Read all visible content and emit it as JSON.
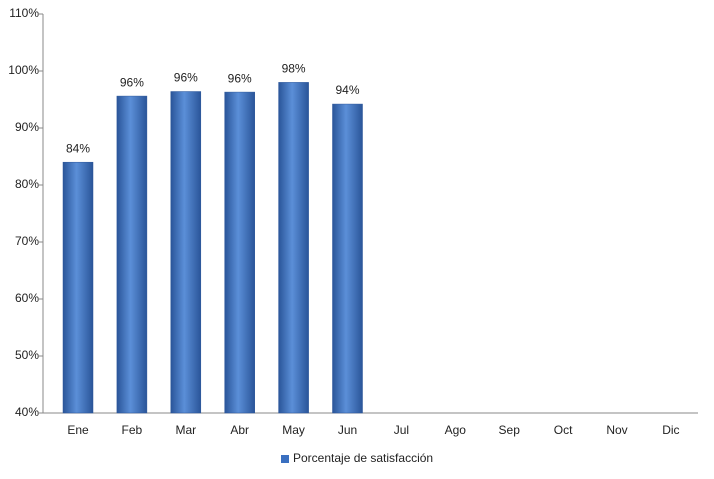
{
  "chart_data": {
    "type": "bar",
    "categories": [
      "Ene",
      "Feb",
      "Mar",
      "Abr",
      "May",
      "Jun",
      "Jul",
      "Ago",
      "Sep",
      "Oct",
      "Nov",
      "Dic"
    ],
    "series": [
      {
        "name": "Porcentaje de satisfacción",
        "color": "#3a6fc0",
        "values": [
          84,
          95.6,
          96.4,
          96.3,
          98,
          94.2,
          null,
          null,
          null,
          null,
          null,
          null
        ],
        "value_labels": [
          "84%",
          "96%",
          "96%",
          "96%",
          "98%",
          "94%",
          null,
          null,
          null,
          null,
          null,
          null
        ]
      }
    ],
    "ylim": [
      40,
      110
    ],
    "yticks": [
      {
        "value": 40,
        "label": "40%"
      },
      {
        "value": 50,
        "label": "50%"
      },
      {
        "value": 60,
        "label": "60%"
      },
      {
        "value": 70,
        "label": "70%"
      },
      {
        "value": 80,
        "label": "80%"
      },
      {
        "value": 90,
        "label": "90%"
      },
      {
        "value": 100,
        "label": "100%"
      },
      {
        "value": 110,
        "label": "110%"
      }
    ],
    "grid": false,
    "legend": "bottom"
  }
}
